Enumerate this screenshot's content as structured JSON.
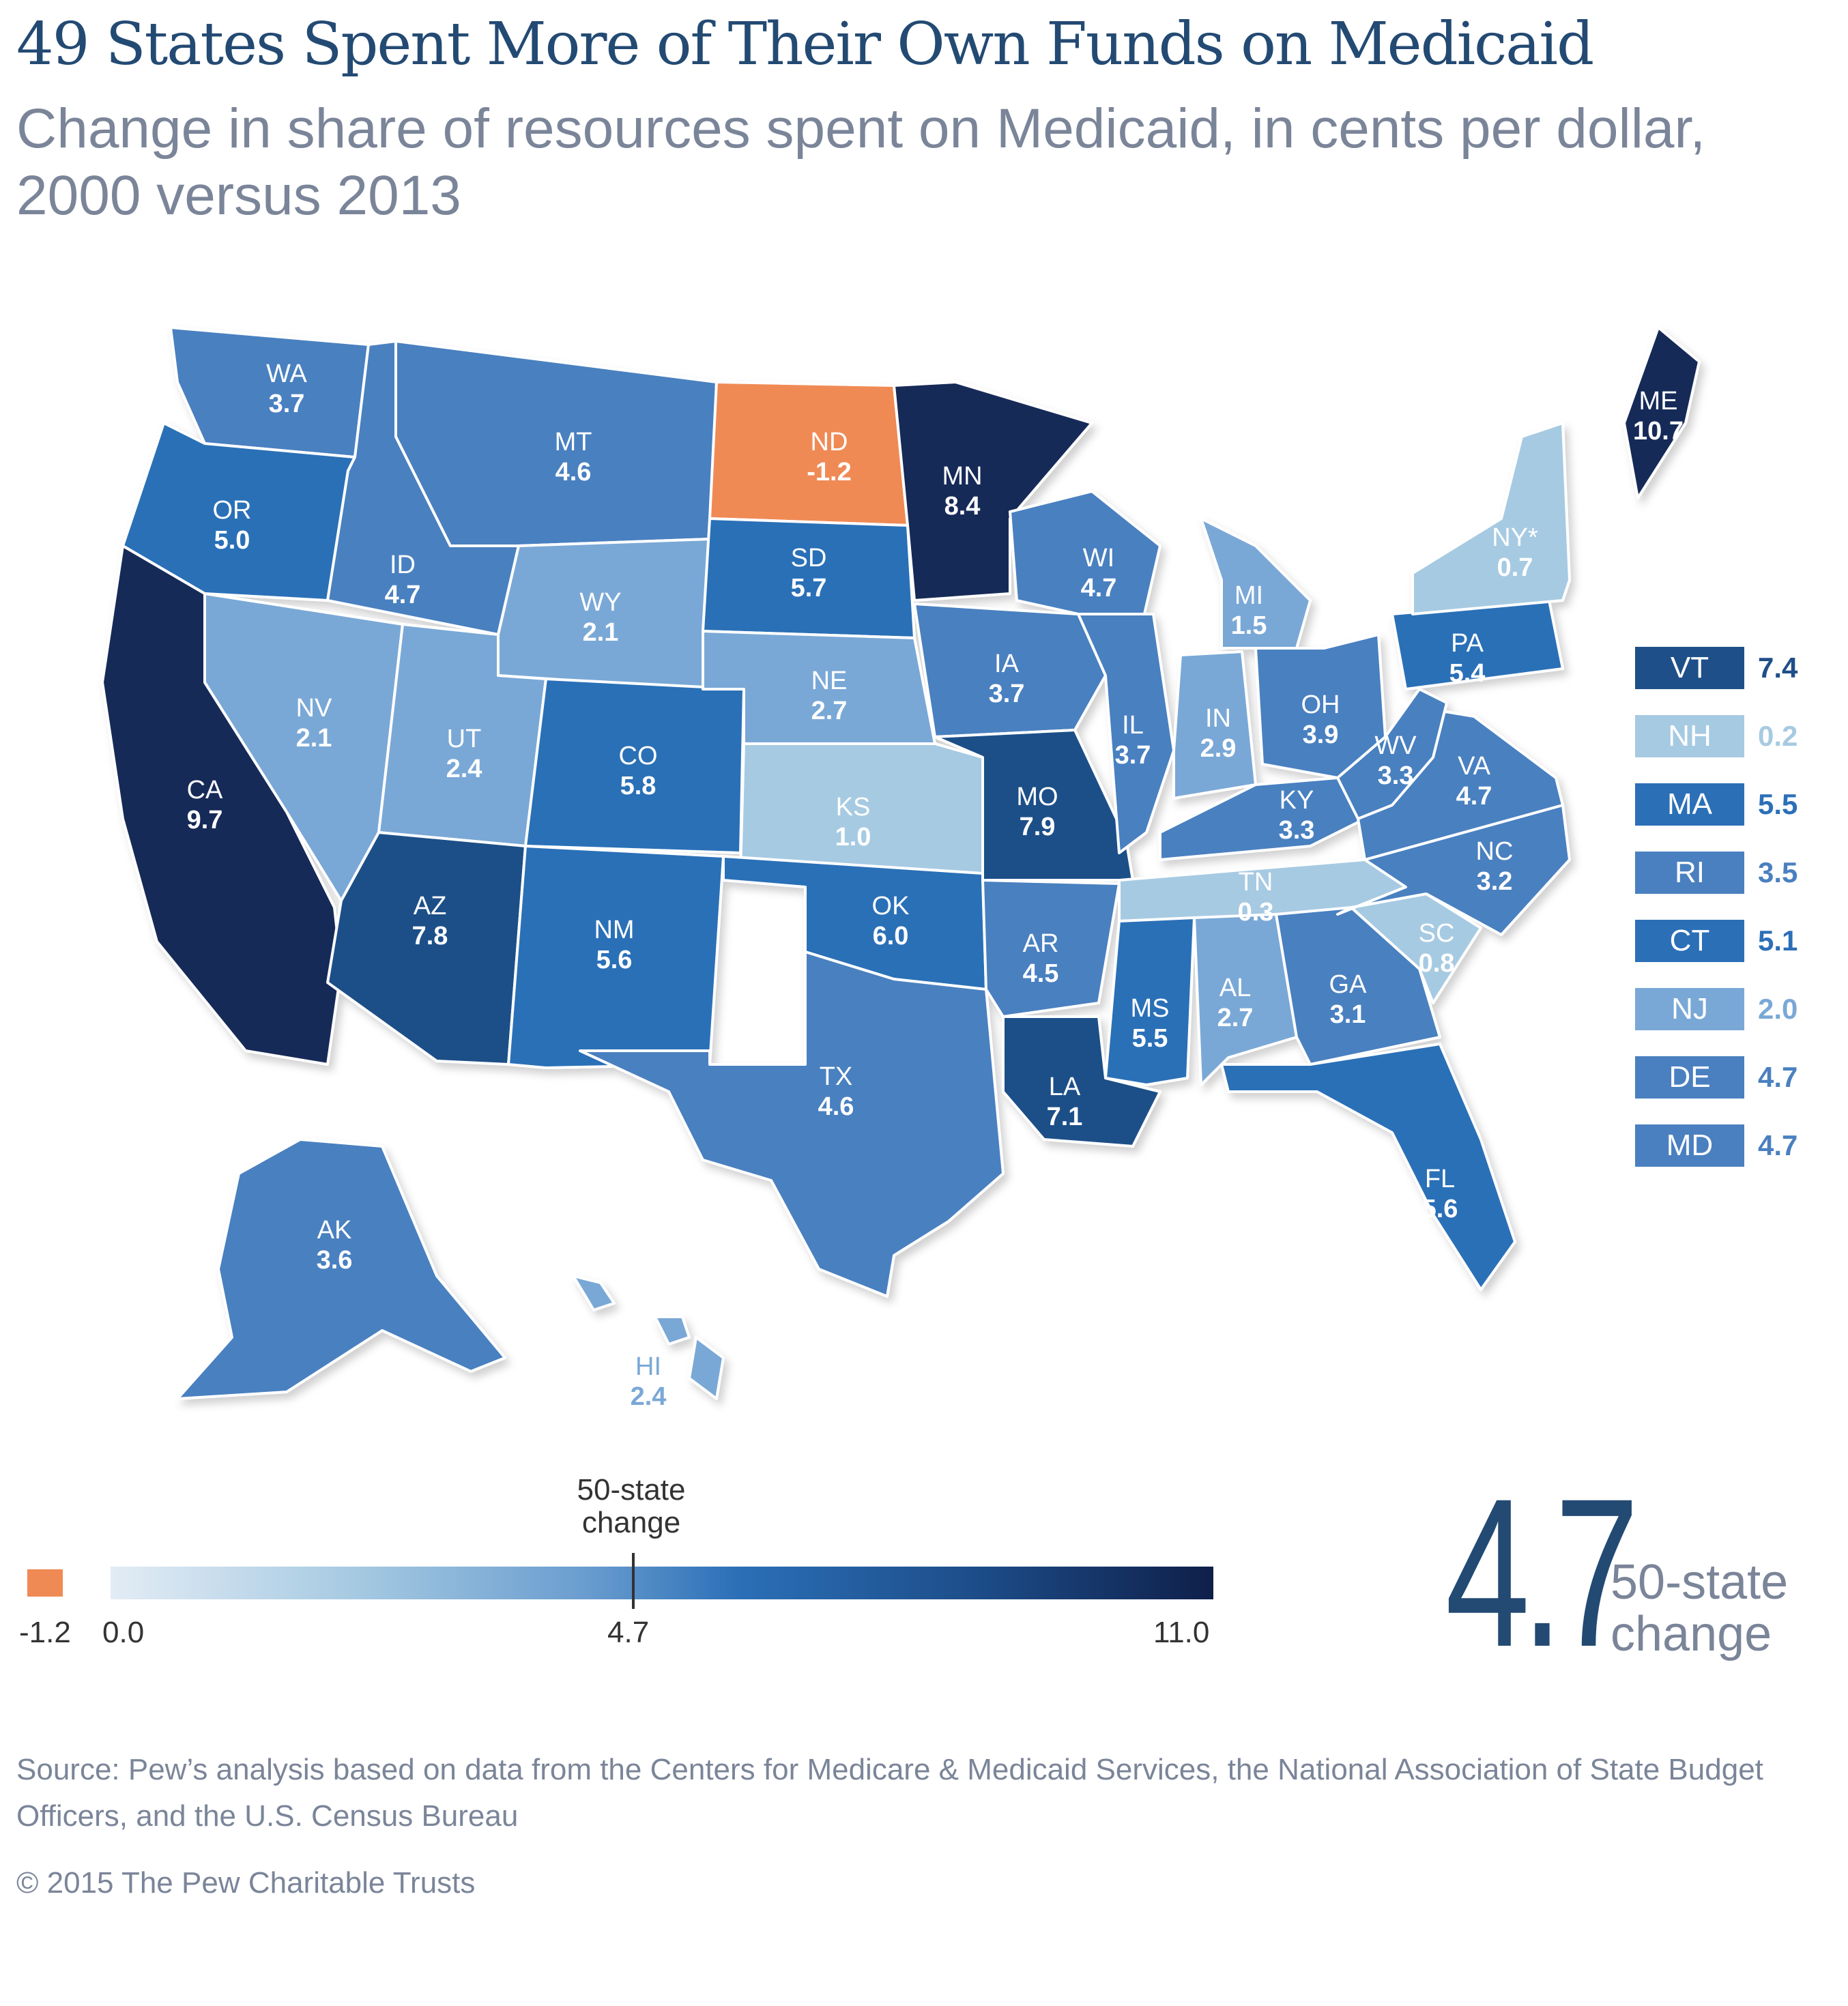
{
  "title": "49 States Spent More of Their Own Funds on Medicaid",
  "subtitle": "Change in share of resources spent on Medicaid, in cents per dollar, 2000 versus 2013",
  "colors": {
    "negative": "#f08a55",
    "very_light": "#a6cae2",
    "light": "#7aa8d6",
    "medium": "#4a80c0",
    "strong": "#2b6fb7",
    "dark": "#1f4f88",
    "darkest": "#192c58"
  },
  "states": [
    {
      "abbr": "WA",
      "value": "3.7"
    },
    {
      "abbr": "OR",
      "value": "5.0"
    },
    {
      "abbr": "CA",
      "value": "9.7"
    },
    {
      "abbr": "ID",
      "value": "4.7"
    },
    {
      "abbr": "NV",
      "value": "2.1"
    },
    {
      "abbr": "MT",
      "value": "4.6"
    },
    {
      "abbr": "WY",
      "value": "2.1"
    },
    {
      "abbr": "UT",
      "value": "2.4"
    },
    {
      "abbr": "AZ",
      "value": "7.8"
    },
    {
      "abbr": "CO",
      "value": "5.8"
    },
    {
      "abbr": "NM",
      "value": "5.6"
    },
    {
      "abbr": "ND",
      "value": "-1.2"
    },
    {
      "abbr": "SD",
      "value": "5.7"
    },
    {
      "abbr": "NE",
      "value": "2.7"
    },
    {
      "abbr": "KS",
      "value": "1.0"
    },
    {
      "abbr": "OK",
      "value": "6.0"
    },
    {
      "abbr": "TX",
      "value": "4.6"
    },
    {
      "abbr": "MN",
      "value": "8.4"
    },
    {
      "abbr": "IA",
      "value": "3.7"
    },
    {
      "abbr": "MO",
      "value": "7.9"
    },
    {
      "abbr": "AR",
      "value": "4.5"
    },
    {
      "abbr": "LA",
      "value": "7.1"
    },
    {
      "abbr": "WI",
      "value": "4.7"
    },
    {
      "abbr": "IL",
      "value": "3.7"
    },
    {
      "abbr": "MI",
      "value": "1.5"
    },
    {
      "abbr": "IN",
      "value": "2.9"
    },
    {
      "abbr": "OH",
      "value": "3.9"
    },
    {
      "abbr": "KY",
      "value": "3.3"
    },
    {
      "abbr": "TN",
      "value": "0.3"
    },
    {
      "abbr": "MS",
      "value": "5.5"
    },
    {
      "abbr": "AL",
      "value": "2.7"
    },
    {
      "abbr": "GA",
      "value": "3.1"
    },
    {
      "abbr": "FL",
      "value": "5.6"
    },
    {
      "abbr": "SC",
      "value": "0.8"
    },
    {
      "abbr": "NC",
      "value": "3.2"
    },
    {
      "abbr": "VA",
      "value": "4.7"
    },
    {
      "abbr": "WV",
      "value": "3.3"
    },
    {
      "abbr": "PA",
      "value": "5.4"
    },
    {
      "abbr": "NY*",
      "value": "0.7"
    },
    {
      "abbr": "ME",
      "value": "10.7"
    },
    {
      "abbr": "AK",
      "value": "3.6"
    },
    {
      "abbr": "HI",
      "value": "2.4"
    }
  ],
  "side_states": [
    {
      "abbr": "VT",
      "value": "7.4"
    },
    {
      "abbr": "NH",
      "value": "0.2"
    },
    {
      "abbr": "MA",
      "value": "5.5"
    },
    {
      "abbr": "RI",
      "value": "3.5"
    },
    {
      "abbr": "CT",
      "value": "5.1"
    },
    {
      "abbr": "NJ",
      "value": "2.0"
    },
    {
      "abbr": "DE",
      "value": "4.7"
    },
    {
      "abbr": "MD",
      "value": "4.7"
    }
  ],
  "legend": {
    "title": "50-state change",
    "negative_label": "-1.2",
    "min_label": "0.0",
    "mid_label": "4.7",
    "max_label": "11.0"
  },
  "summary": {
    "value": "4.7",
    "label": "50-state change"
  },
  "source": "Source: Pew’s analysis based on data from the Centers for Medicare & Medicaid Services, the National Association of State Budget Officers, and the U.S. Census Bureau",
  "copyright": "© 2015 The Pew Charitable Trusts"
}
